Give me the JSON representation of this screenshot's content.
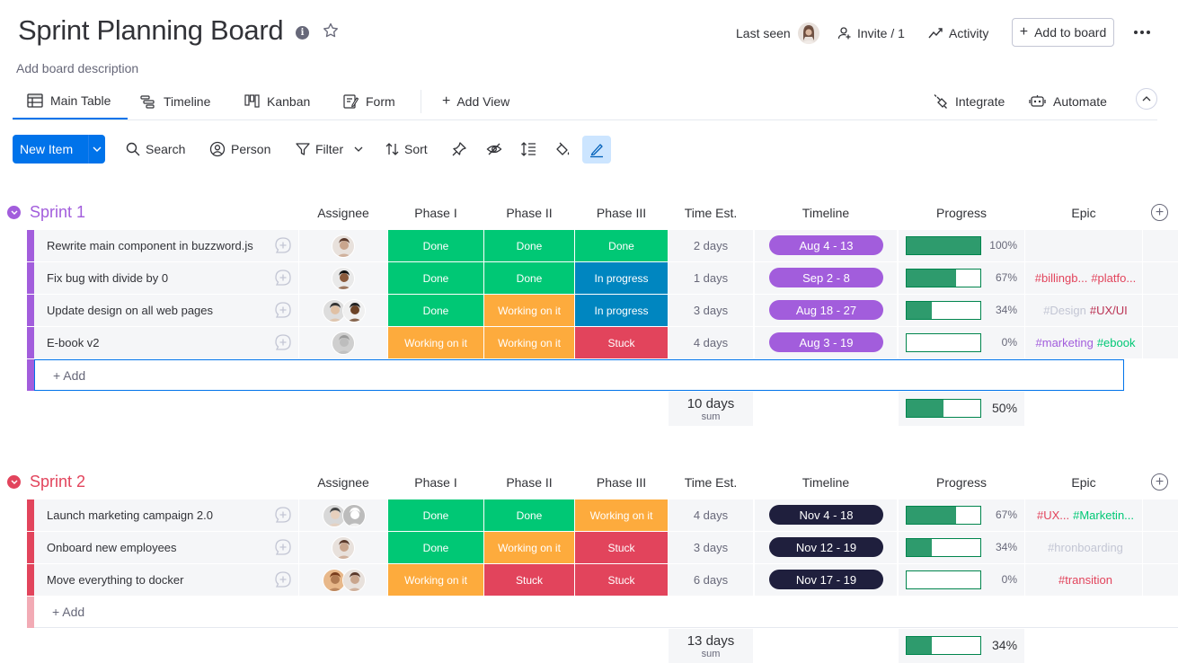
{
  "board": {
    "title": "Sprint Planning Board",
    "description": "Add board description",
    "last_seen_label": "Last seen",
    "invite_label": "Invite / 1",
    "activity_label": "Activity",
    "add_to_board_label": "Add to board"
  },
  "views": {
    "main_table": "Main Table",
    "timeline": "Timeline",
    "kanban": "Kanban",
    "form": "Form",
    "add_view": "Add View",
    "integrate": "Integrate",
    "automate": "Automate"
  },
  "toolbar": {
    "new_item": "New Item",
    "search": "Search",
    "person": "Person",
    "filter": "Filter",
    "sort": "Sort"
  },
  "columns": {
    "assignee": "Assignee",
    "phase1": "Phase I",
    "phase2": "Phase II",
    "phase3": "Phase III",
    "time_est": "Time Est.",
    "timeline": "Timeline",
    "progress": "Progress",
    "epic": "Epic"
  },
  "colors": {
    "done": "#00c875",
    "working": "#fdab3d",
    "in_progress": "#0086c0",
    "stuck": "#e2445c",
    "sprint1": "#a25ddc",
    "sprint2": "#e2445c",
    "timeline1": "#a25ddc",
    "timeline2": "#1f1f3d"
  },
  "groups": [
    {
      "title": "Sprint 1",
      "add_label": "+ Add",
      "sum_time": "10 days",
      "sum_label": "sum",
      "sum_progress": "50%",
      "sum_progress_value": 0.5,
      "items": [
        {
          "name": "Rewrite main component in buzzword.js",
          "phase1": "Done",
          "phase2": "Done",
          "phase3": "Done",
          "time": "2 days",
          "timeline": "Aug 4 - 13",
          "progress": "100%",
          "progress_value": 1.0,
          "epic": []
        },
        {
          "name": "Fix bug with divide by 0",
          "phase1": "Done",
          "phase2": "Done",
          "phase3": "In progress",
          "time": "1 days",
          "timeline": "Sep 2 - 8",
          "progress": "67%",
          "progress_value": 0.67,
          "epic": [
            {
              "t": "#billingb...",
              "c": "#e2445c"
            },
            {
              "t": "#platfo...",
              "c": "#e2445c"
            }
          ]
        },
        {
          "name": "Update design on all web pages",
          "phase1": "Done",
          "phase2": "Working on it",
          "phase3": "In progress",
          "time": "3 days",
          "timeline": "Aug 18 - 27",
          "progress": "34%",
          "progress_value": 0.34,
          "epic": [
            {
              "t": "#Design",
              "c": "#c3c6d4"
            },
            {
              "t": "#UX/UI",
              "c": "#bb3354"
            }
          ]
        },
        {
          "name": "E-book v2",
          "phase1": "Working on it",
          "phase2": "Working on it",
          "phase3": "Stuck",
          "time": "4 days",
          "timeline": "Aug 3 - 19",
          "progress": "0%",
          "progress_value": 0.0,
          "epic": [
            {
              "t": "#marketing",
              "c": "#a25ddc"
            },
            {
              "t": "#ebook",
              "c": "#00c875"
            }
          ]
        }
      ]
    },
    {
      "title": "Sprint 2",
      "add_label": "+ Add",
      "sum_time": "13 days",
      "sum_label": "sum",
      "sum_progress": "34%",
      "sum_progress_value": 0.34,
      "items": [
        {
          "name": "Launch marketing campaign 2.0",
          "phase1": "Done",
          "phase2": "Done",
          "phase3": "Working on it",
          "time": "4 days",
          "timeline": "Nov 4 - 18",
          "progress": "67%",
          "progress_value": 0.67,
          "epic": [
            {
              "t": "#UX...",
              "c": "#e2445c"
            },
            {
              "t": "#Marketin...",
              "c": "#00c875"
            }
          ]
        },
        {
          "name": "Onboard new employees",
          "phase1": "Done",
          "phase2": "Working on it",
          "phase3": "Stuck",
          "time": "3 days",
          "timeline": "Nov 12 - 19",
          "progress": "34%",
          "progress_value": 0.34,
          "epic": [
            {
              "t": "#hronboarding",
              "c": "#c3c6d4"
            }
          ]
        },
        {
          "name": "Move everything to docker",
          "phase1": "Working on it",
          "phase2": "Stuck",
          "phase3": "Stuck",
          "time": "6 days",
          "timeline": "Nov 17 - 19",
          "progress": "0%",
          "progress_value": 0.0,
          "epic": [
            {
              "t": "#transition",
              "c": "#e2445c"
            }
          ]
        }
      ]
    }
  ]
}
